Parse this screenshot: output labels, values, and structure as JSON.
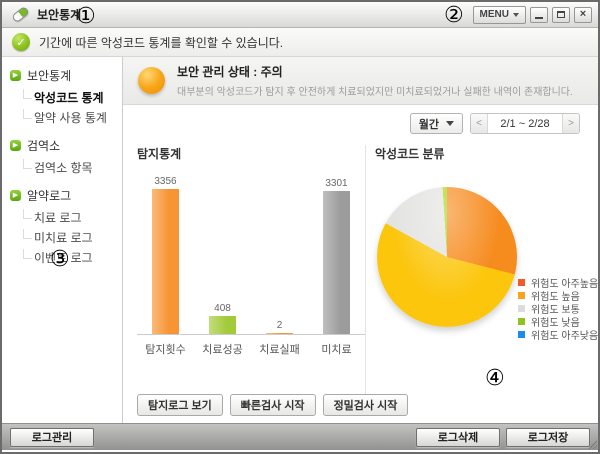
{
  "window": {
    "title": "보안통계",
    "menu_button": "MENU",
    "annotations": {
      "a1": "①",
      "a2": "②",
      "a3": "③",
      "a4": "④"
    }
  },
  "message_bar": {
    "text": "기간에 따른 악성코드 통계를 확인할 수 있습니다."
  },
  "sidebar": {
    "groups": [
      {
        "label": "보안통계",
        "items": [
          {
            "label": "악성코드 통계"
          },
          {
            "label": "알약 사용 통계"
          }
        ]
      },
      {
        "label": "검역소",
        "items": [
          {
            "label": "검역소 항목"
          }
        ]
      },
      {
        "label": "알약로그",
        "items": [
          {
            "label": "치료 로그"
          },
          {
            "label": "미치료 로그"
          },
          {
            "label": "이벤트 로그"
          }
        ]
      }
    ]
  },
  "status_header": {
    "title": "보안 관리 상태 : 주의",
    "description": "대부분의 악성코드가 탐지 후 안전하게 치료되었지만 미치료되었거나 실패한 내역이 존재합니다."
  },
  "period_controls": {
    "dropdown_value": "월간",
    "prev": "<",
    "range": "2/1 ~ 2/28",
    "next": ">"
  },
  "chart_data": [
    {
      "type": "bar",
      "title": "탐지통계",
      "categories": [
        "탐지횟수",
        "치료성공",
        "치료실패",
        "미치료"
      ],
      "values": [
        3356,
        408,
        2,
        3301
      ],
      "colors": [
        "#f79433",
        "#a3cb39",
        "#f79433",
        "#9c9c9c"
      ],
      "ylim": [
        0,
        3356
      ]
    },
    {
      "type": "pie",
      "title": "악성코드 분류",
      "slices": [
        {
          "label": "위험도 아주높음",
          "pct": 29,
          "color": "#f68b1e",
          "legend_color": "#f1592a"
        },
        {
          "label": "위험도 높음",
          "pct": 54,
          "color": "#fcc60d",
          "legend_color": "#f9a21a"
        },
        {
          "label": "위험도 보통",
          "pct": 16,
          "color": "#e3e3e1",
          "legend_color": "#dcdcda"
        },
        {
          "label": "위험도 낮음",
          "pct": 1,
          "color": "#a8d816",
          "legend_color": "#8fc31f"
        },
        {
          "label": "위험도 아주낮음",
          "pct": 0,
          "color": "#2492e5",
          "legend_color": "#1d8ce8"
        }
      ],
      "legend_position": "right"
    }
  ],
  "action_buttons": [
    "탐지로그 보기",
    "빠른검사 시작",
    "정밀검사 시작"
  ],
  "bottom_bar": {
    "left": "로그관리",
    "right": [
      "로그삭제",
      "로그저장"
    ]
  }
}
